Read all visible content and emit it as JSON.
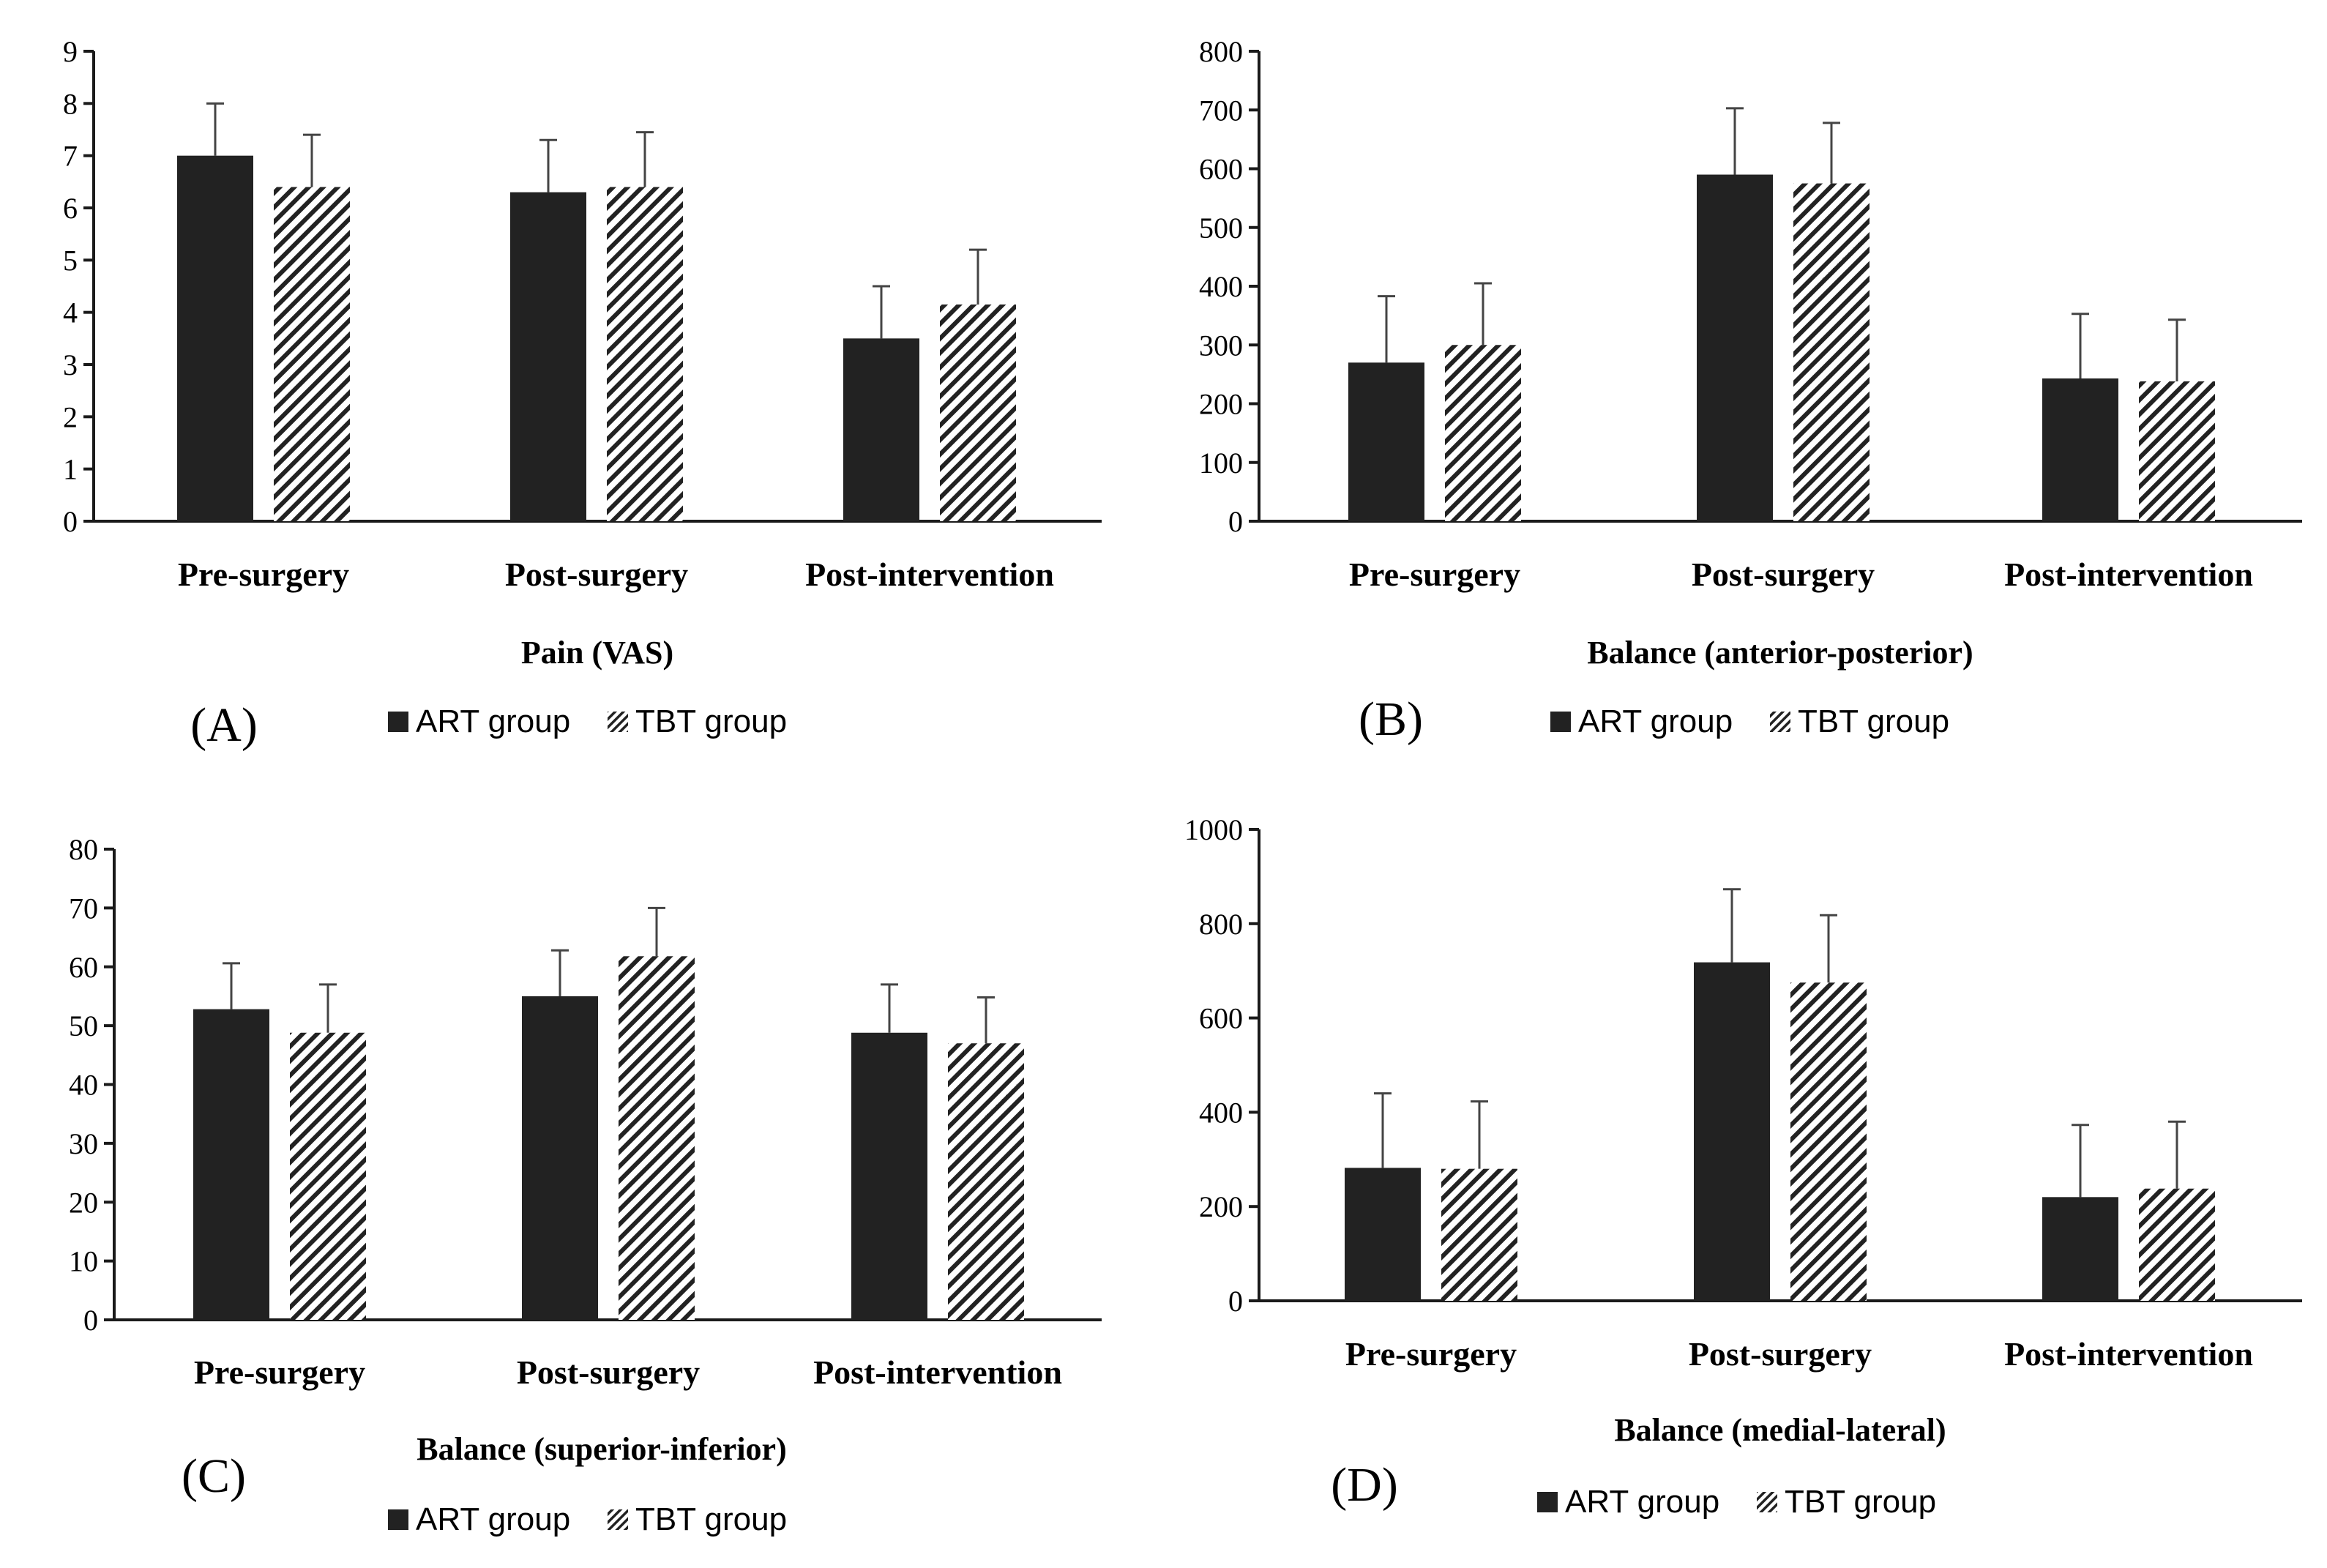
{
  "colors": {
    "art": "#222222",
    "tbt_stripe": "#222222",
    "axis": "#1a1a1a",
    "error_bar": "#444444"
  },
  "legend": {
    "art": "ART group",
    "tbt": "TBT group"
  },
  "chart_data": [
    {
      "type": "bar",
      "panel_label": "(A)",
      "xlabel": "Pain (VAS)",
      "categories": [
        "Pre-surgery",
        "Post-surgery",
        "Post-intervention"
      ],
      "ylim": [
        0,
        9
      ],
      "yticks": [
        0,
        1,
        2,
        3,
        4,
        5,
        6,
        7,
        8,
        9
      ],
      "legend_position": "bottom",
      "series": [
        {
          "name": "ART group",
          "values": [
            7.0,
            6.3,
            3.5
          ],
          "errors": [
            1.0,
            1.0,
            1.0
          ]
        },
        {
          "name": "TBT group",
          "values": [
            6.4,
            6.4,
            4.15
          ],
          "errors": [
            1.0,
            1.05,
            1.05
          ]
        }
      ]
    },
    {
      "type": "bar",
      "panel_label": "(B)",
      "xlabel": "Balance (anterior-posterior)",
      "categories": [
        "Pre-surgery",
        "Post-surgery",
        "Post-intervention"
      ],
      "ylim": [
        0,
        800
      ],
      "yticks": [
        0,
        100,
        200,
        300,
        400,
        500,
        600,
        700,
        800
      ],
      "legend_position": "bottom",
      "series": [
        {
          "name": "ART group",
          "values": [
            270,
            590,
            243
          ],
          "errors": [
            113,
            113,
            110
          ]
        },
        {
          "name": "TBT group",
          "values": [
            300,
            575,
            238
          ],
          "errors": [
            105,
            103,
            105
          ]
        }
      ]
    },
    {
      "type": "bar",
      "panel_label": "(C)",
      "xlabel": "Balance (superior-inferior)",
      "categories": [
        "Pre-surgery",
        "Post-surgery",
        "Post-intervention"
      ],
      "ylim": [
        0,
        80
      ],
      "yticks": [
        0,
        10,
        20,
        30,
        40,
        50,
        60,
        70,
        80
      ],
      "legend_position": "bottom",
      "series": [
        {
          "name": "ART group",
          "values": [
            52.8,
            55.0,
            48.8
          ],
          "errors": [
            7.8,
            7.8,
            8.2
          ]
        },
        {
          "name": "TBT group",
          "values": [
            48.8,
            61.8,
            47.0
          ],
          "errors": [
            8.2,
            8.2,
            7.8
          ]
        }
      ]
    },
    {
      "type": "bar",
      "panel_label": "(D)",
      "xlabel": "Balance (medial-lateral)",
      "categories": [
        "Pre-surgery",
        "Post-surgery",
        "Post-intervention"
      ],
      "ylim": [
        0,
        1000
      ],
      "yticks": [
        0,
        200,
        400,
        600,
        800,
        1000
      ],
      "legend_position": "bottom",
      "series": [
        {
          "name": "ART group",
          "values": [
            282,
            718,
            220
          ],
          "errors": [
            158,
            155,
            153
          ]
        },
        {
          "name": "TBT group",
          "values": [
            280,
            675,
            238
          ],
          "errors": [
            143,
            143,
            142
          ]
        }
      ]
    }
  ]
}
